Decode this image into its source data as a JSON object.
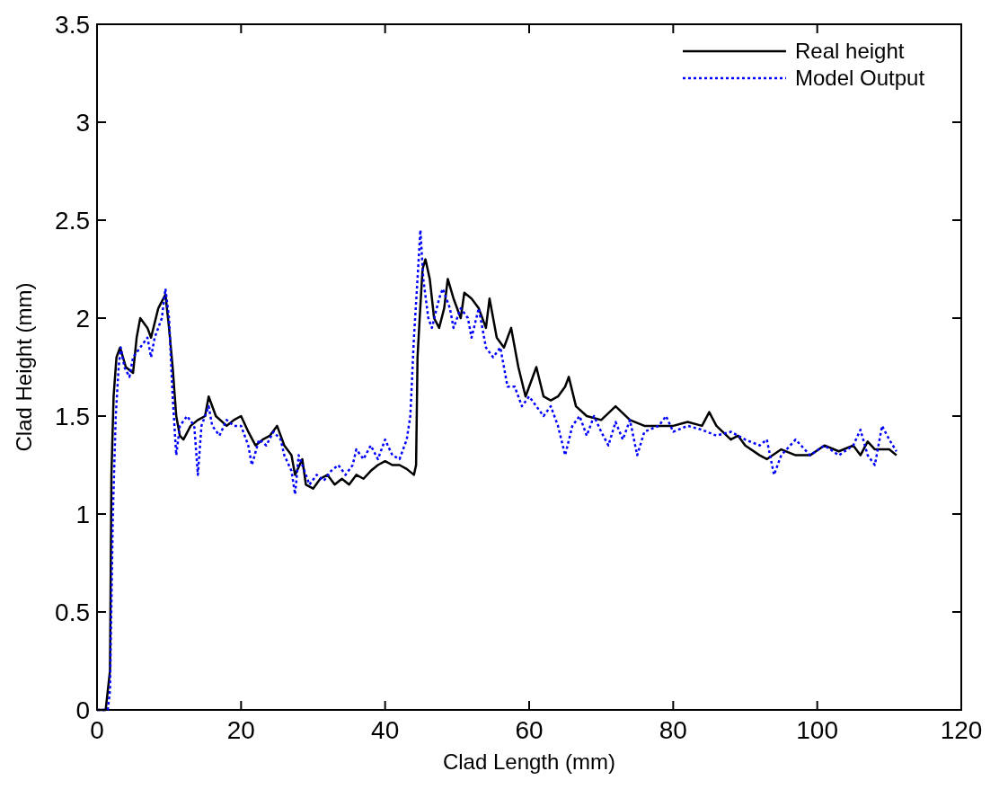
{
  "chart_data": {
    "type": "line",
    "xlabel": "Clad Length (mm)",
    "ylabel": "Clad Height (mm)",
    "xlim": [
      0,
      120
    ],
    "xticks": [
      0,
      20,
      40,
      60,
      80,
      100,
      120
    ],
    "ylim": [
      0,
      3.5
    ],
    "yticks": [
      0,
      0.5,
      1,
      1.5,
      2,
      2.5,
      3,
      3.5
    ],
    "grid": false,
    "legend": "top right",
    "series": [
      {
        "name": "Real height",
        "color": "#000000",
        "line_style": "solid",
        "x": [
          0,
          1.2,
          1.5,
          1.8,
          2.0,
          2.3,
          2.7,
          3.2,
          4.0,
          5.0,
          5.5,
          6.0,
          7.0,
          7.5,
          8.5,
          9.5,
          10.0,
          10.5,
          11.0,
          11.5,
          12.0,
          13,
          14,
          15,
          15.5,
          16.5,
          18,
          19,
          20,
          21,
          22,
          23,
          24,
          25,
          26,
          27,
          27.5,
          28.5,
          29,
          30,
          31,
          32,
          33,
          34,
          35,
          36,
          37,
          38,
          39,
          40,
          41,
          42,
          43,
          44,
          44.3,
          44.5,
          44.8,
          45.2,
          45.6,
          46.2,
          46.8,
          47.5,
          48.2,
          48.7,
          49.5,
          50.5,
          51,
          52,
          53,
          54,
          54.5,
          55.5,
          56.5,
          57.5,
          58.5,
          59.5,
          61,
          62,
          63,
          64,
          65,
          65.5,
          66.5,
          68,
          70,
          72,
          74,
          76,
          78,
          80,
          82,
          84,
          85,
          86,
          88,
          89,
          90,
          92,
          93,
          95,
          97,
          99,
          101,
          103,
          105,
          106,
          107,
          108,
          110,
          111
        ],
        "values": [
          0,
          0,
          0.1,
          0.2,
          1.2,
          1.6,
          1.8,
          1.85,
          1.75,
          1.72,
          1.9,
          2.0,
          1.95,
          1.9,
          2.05,
          2.12,
          1.95,
          1.75,
          1.5,
          1.4,
          1.38,
          1.45,
          1.48,
          1.5,
          1.6,
          1.5,
          1.45,
          1.48,
          1.5,
          1.42,
          1.35,
          1.38,
          1.4,
          1.45,
          1.35,
          1.3,
          1.2,
          1.28,
          1.15,
          1.13,
          1.18,
          1.2,
          1.15,
          1.18,
          1.15,
          1.2,
          1.18,
          1.22,
          1.25,
          1.27,
          1.25,
          1.25,
          1.23,
          1.2,
          1.25,
          1.8,
          2.0,
          2.25,
          2.3,
          2.2,
          2.0,
          1.95,
          2.05,
          2.2,
          2.1,
          2.0,
          2.13,
          2.1,
          2.05,
          1.95,
          2.1,
          1.9,
          1.85,
          1.95,
          1.75,
          1.6,
          1.75,
          1.6,
          1.58,
          1.6,
          1.65,
          1.7,
          1.55,
          1.5,
          1.48,
          1.55,
          1.48,
          1.45,
          1.45,
          1.45,
          1.47,
          1.45,
          1.52,
          1.45,
          1.38,
          1.4,
          1.35,
          1.3,
          1.28,
          1.33,
          1.3,
          1.3,
          1.35,
          1.32,
          1.35,
          1.3,
          1.37,
          1.33,
          1.33,
          1.3
        ]
      },
      {
        "name": "Model Output",
        "color": "#0000ff",
        "line_style": "dotted",
        "x": [
          0,
          1.5,
          1.8,
          2.2,
          2.6,
          3.0,
          3.3,
          3.8,
          4.5,
          5.0,
          6,
          7,
          7.5,
          8,
          9,
          9.5,
          10,
          10.5,
          11,
          11.5,
          12.5,
          13.5,
          14,
          14.5,
          15.5,
          16,
          17,
          18,
          19,
          20,
          21,
          21.5,
          22.5,
          23.5,
          24.5,
          25.5,
          26,
          27,
          27.5,
          28,
          28.5,
          29.5,
          30.5,
          31.5,
          32.5,
          33.5,
          34.5,
          35.5,
          36,
          37,
          38,
          39,
          40,
          41,
          42,
          43,
          43.5,
          44,
          44.5,
          44.9,
          45.3,
          46,
          46.5,
          47.5,
          48,
          49,
          49.5,
          50.5,
          51.5,
          52,
          53,
          54,
          55,
          56,
          57,
          58,
          59,
          60,
          61,
          62,
          63,
          64,
          65,
          66,
          67,
          68,
          69,
          70,
          71,
          72,
          73,
          74,
          75,
          76,
          78,
          79,
          80,
          82,
          84,
          86,
          88,
          90,
          92,
          93,
          94,
          95,
          97,
          99,
          101,
          103,
          105,
          106,
          107,
          108,
          109,
          110,
          111
        ],
        "values": [
          0,
          0,
          0.1,
          1.0,
          1.5,
          1.75,
          1.85,
          1.75,
          1.7,
          1.8,
          1.85,
          1.9,
          1.8,
          1.9,
          2.0,
          2.15,
          2.0,
          1.6,
          1.3,
          1.45,
          1.5,
          1.45,
          1.2,
          1.45,
          1.55,
          1.45,
          1.4,
          1.48,
          1.45,
          1.45,
          1.35,
          1.25,
          1.38,
          1.35,
          1.42,
          1.38,
          1.3,
          1.22,
          1.1,
          1.3,
          1.25,
          1.15,
          1.2,
          1.17,
          1.22,
          1.25,
          1.2,
          1.25,
          1.33,
          1.28,
          1.35,
          1.28,
          1.38,
          1.3,
          1.28,
          1.38,
          1.5,
          1.9,
          2.2,
          2.45,
          2.2,
          2.0,
          1.95,
          2.1,
          2.15,
          2.05,
          1.95,
          2.05,
          2.0,
          1.9,
          2.05,
          1.85,
          1.8,
          1.85,
          1.65,
          1.65,
          1.55,
          1.6,
          1.55,
          1.5,
          1.55,
          1.45,
          1.3,
          1.45,
          1.5,
          1.4,
          1.5,
          1.42,
          1.35,
          1.47,
          1.38,
          1.48,
          1.3,
          1.42,
          1.45,
          1.5,
          1.42,
          1.45,
          1.43,
          1.4,
          1.42,
          1.38,
          1.35,
          1.38,
          1.2,
          1.3,
          1.38,
          1.3,
          1.35,
          1.3,
          1.35,
          1.43,
          1.3,
          1.25,
          1.45,
          1.38,
          1.32
        ]
      }
    ]
  }
}
